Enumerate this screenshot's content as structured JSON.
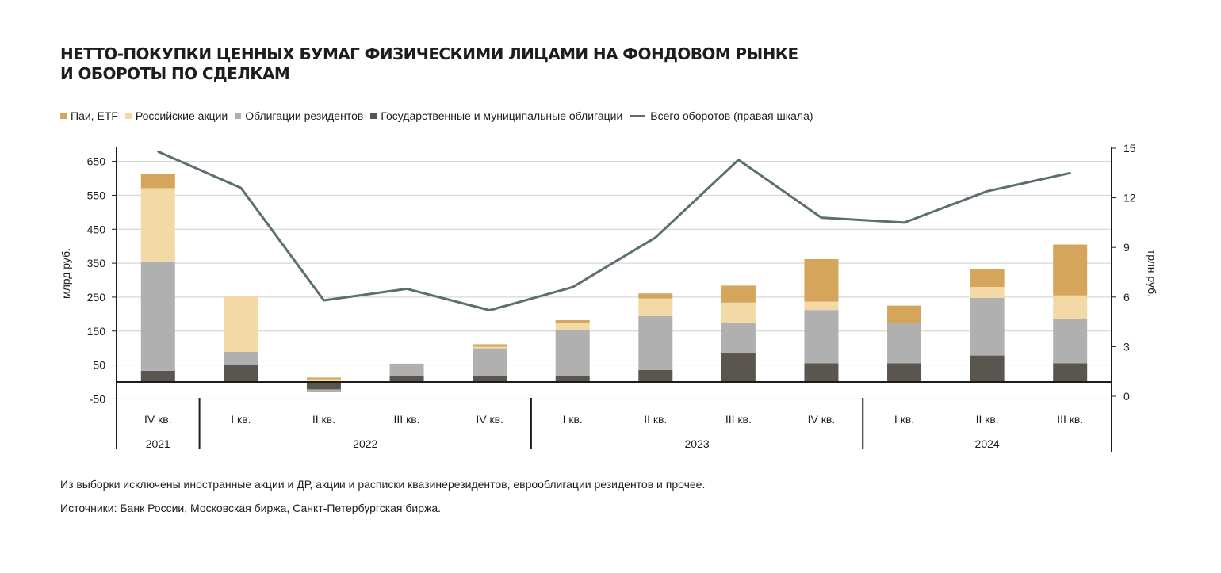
{
  "title": {
    "line1": "НЕТТО-ПОКУПКИ ЦЕННЫХ БУМАГ ФИЗИЧЕСКИМИ ЛИЦАМИ НА ФОНДОВОМ РЫНКЕ",
    "line2": "И ОБОРОТЫ ПО СДЕЛКАМ"
  },
  "legend": [
    {
      "label": "Паи, ETF",
      "color": "#d4a55a",
      "kind": "bar"
    },
    {
      "label": "Российские акции",
      "color": "#f2d9a6",
      "kind": "bar"
    },
    {
      "label": "Облигации резидентов",
      "color": "#b0b0b0",
      "kind": "bar"
    },
    {
      "label": "Государственные и муниципальные облигации",
      "color": "#5a564f",
      "kind": "bar"
    },
    {
      "label": "Всего оборотов (правая шкала)",
      "color": "#5b7068",
      "kind": "line"
    }
  ],
  "notes": {
    "exclusions": "Из выборки исключены иностранные акции и ДР, акции и расписки квазинерезидентов, еврооблигации резидентов и прочее.",
    "sources": "Источники: Банк России, Московская биржа, Санкт-Петербургская биржа."
  },
  "chart_data": {
    "type": "bar",
    "stacked": true,
    "categories": [
      "IV кв.",
      "I кв.",
      "II кв.",
      "III кв.",
      "IV кв.",
      "I кв.",
      "II кв.",
      "III кв.",
      "IV кв.",
      "I кв.",
      "II кв.",
      "III кв."
    ],
    "years": [
      {
        "label": "2021",
        "from": 0,
        "to": 0
      },
      {
        "label": "2022",
        "from": 1,
        "to": 4
      },
      {
        "label": "2023",
        "from": 5,
        "to": 8
      },
      {
        "label": "2024",
        "from": 9,
        "to": 11
      }
    ],
    "ylabel_left": "млрд руб.",
    "ylabel_right": "трлн руб.",
    "ylim_left": [
      -50,
      650
    ],
    "yticks_left": [
      -50,
      50,
      150,
      250,
      350,
      450,
      550,
      650
    ],
    "ylim_right": [
      0,
      15
    ],
    "yticks_right": [
      0,
      3,
      6,
      9,
      12,
      15
    ],
    "grid": true,
    "series": [
      {
        "name": "Государственные и муниципальные облигации",
        "color": "#5a564f",
        "values": [
          33,
          52,
          -22,
          18,
          17,
          18,
          35,
          84,
          55,
          55,
          78,
          55
        ]
      },
      {
        "name": "Облигации резидентов",
        "color": "#b0b0b0",
        "values": [
          322,
          37,
          -8,
          36,
          82,
          136,
          159,
          90,
          157,
          120,
          170,
          130
        ]
      },
      {
        "name": "Российские акции",
        "color": "#f2d9a6",
        "values": [
          216,
          165,
          8,
          0,
          5,
          20,
          52,
          60,
          25,
          0,
          32,
          70
        ]
      },
      {
        "name": "Паи, ETF",
        "color": "#d4a55a",
        "values": [
          42,
          0,
          5,
          0,
          7,
          8,
          15,
          50,
          125,
          50,
          53,
          150
        ]
      }
    ],
    "line": {
      "name": "Всего оборотов (правая шкала)",
      "color": "#5b7068",
      "values": [
        14.8,
        12.6,
        5.8,
        6.5,
        5.2,
        6.6,
        9.6,
        14.3,
        10.8,
        10.5,
        12.4,
        13.5
      ]
    }
  }
}
